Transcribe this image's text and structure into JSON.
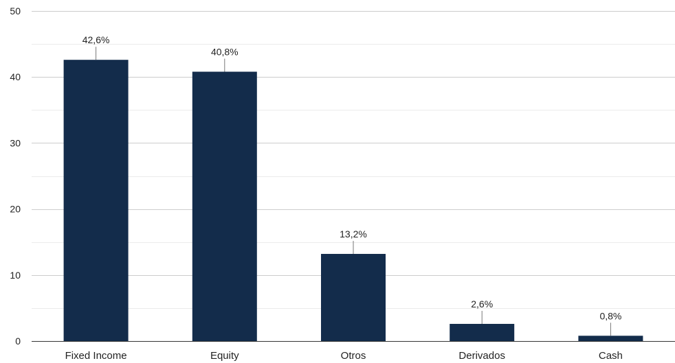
{
  "chart_data": {
    "type": "bar",
    "title": "",
    "xlabel": "",
    "ylabel": "",
    "categories": [
      "Fixed Income",
      "Equity",
      "Otros",
      "Derivados",
      "Cash"
    ],
    "values": [
      42.6,
      40.8,
      13.2,
      2.6,
      0.8
    ],
    "data_labels": [
      "42,6%",
      "40,8%",
      "13,2%",
      "2,6%",
      "0,8%"
    ],
    "ylim": [
      0,
      50
    ],
    "yticks": [
      "0",
      "10",
      "20",
      "30",
      "40",
      "50"
    ],
    "grid": true,
    "legend": "none",
    "bar_color": "#132c4b"
  }
}
